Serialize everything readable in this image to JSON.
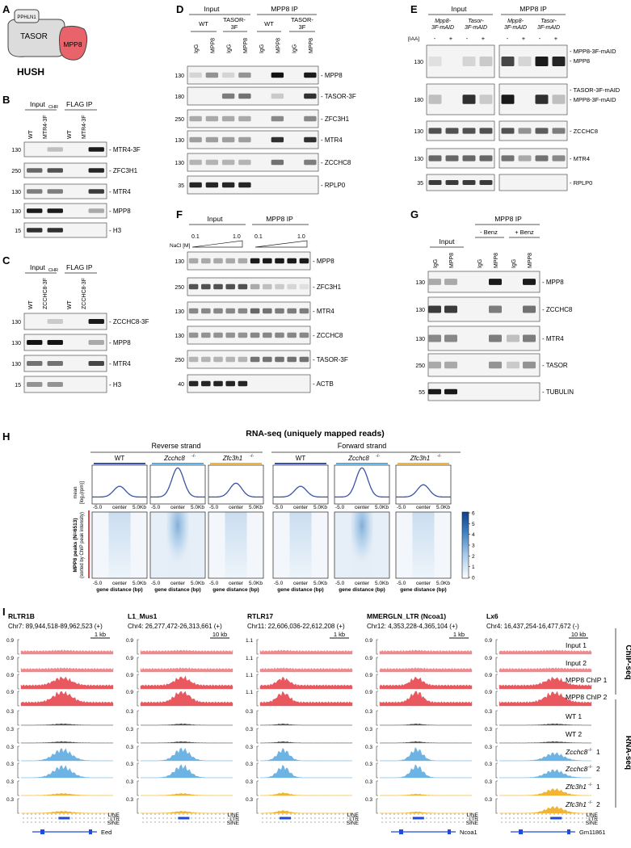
{
  "panelA": {
    "letter": "A",
    "title": "HUSH",
    "proteins": {
      "p1": "PPHLN1",
      "p2": "TASOR",
      "p3": "MPP8"
    },
    "colors": {
      "mpp8": "#e9636b",
      "tasor": "#d9d9d9",
      "pphln1": "#e6e6e6"
    }
  },
  "panelB": {
    "letter": "B",
    "groups": {
      "g1": "Input",
      "g1_sub": "CHR",
      "g2": "FLAG IP"
    },
    "lanes": {
      "l1": "WT",
      "l2": "MTR4-3F",
      "l3": "WT",
      "l4": "MTR4-3F"
    },
    "blots": [
      {
        "mw": "130",
        "label": "- MTR4-3F"
      },
      {
        "mw": "250",
        "label": "- ZFC3H1"
      },
      {
        "mw": "130",
        "label": "- MTR4"
      },
      {
        "mw": "130",
        "label": "- MPP8"
      },
      {
        "mw": "15",
        "label": "- H3"
      }
    ]
  },
  "panelC": {
    "letter": "C",
    "groups": {
      "g1": "Input",
      "g1_sub": "CHR",
      "g2": "FLAG IP"
    },
    "lanes": {
      "l1": "WT",
      "l2": "ZCCHC8-3F",
      "l3": "WT",
      "l4": "ZCCHC8-3F"
    },
    "blots": [
      {
        "mw": "130",
        "label": "- ZCCHC8-3F"
      },
      {
        "mw": "130",
        "label": "- MPP8"
      },
      {
        "mw": "130",
        "label": "- MTR4"
      },
      {
        "mw": "15",
        "label": "- H3"
      }
    ]
  },
  "panelD": {
    "letter": "D",
    "groups": {
      "g1": "Input",
      "g2": "MPP8 IP"
    },
    "subgroups": {
      "s1": "WT",
      "s2a": "TASOR-",
      "s2b": "3F",
      "s3": "WT",
      "s4a": "TASOR-",
      "s4b": "3F"
    },
    "lanes": [
      "IgG",
      "MPP8",
      "IgG",
      "MPP8",
      "IgG",
      "MPP8",
      "IgG",
      "MPP8"
    ],
    "blots": [
      {
        "mw": "130",
        "label": "- MPP8"
      },
      {
        "mw": "180",
        "label": "- TASOR-3F"
      },
      {
        "mw": "250",
        "label": "- ZFC3H1"
      },
      {
        "mw": "130",
        "label": "- MTR4"
      },
      {
        "mw": "130",
        "label": "- ZCCHC8"
      },
      {
        "mw": "35",
        "label": "- RPLP0"
      }
    ]
  },
  "panelE": {
    "letter": "E",
    "groups": {
      "g1": "Input",
      "g2": "MPP8 IP"
    },
    "subgroups": {
      "s1a": "Mpp8-",
      "s1b": "3F-mAID",
      "s2a": "Tasor-",
      "s2b": "3F-mAID",
      "s3a": "Mpp8-",
      "s3b": "3F-mAID",
      "s4a": "Tasor-",
      "s4b": "3F-mAID"
    },
    "iaa": {
      "label": "[IAA]",
      "minus": "-",
      "plus": "+"
    },
    "blots": [
      {
        "mw": "130",
        "label1": "- MPP8-3F-mAID",
        "label2": "- MPP8"
      },
      {
        "mw": "180",
        "label1": "- TASOR-3F-mAID",
        "label2": "- MPP8-3F-mAID"
      },
      {
        "mw": "130",
        "label1": "- ZCCHC8",
        "label2": ""
      },
      {
        "mw": "130",
        "label1": "- MTR4",
        "label2": ""
      },
      {
        "mw": "35",
        "label1": "- RPLP0",
        "label2": ""
      }
    ]
  },
  "panelF": {
    "letter": "F",
    "groups": {
      "g1": "Input",
      "g2": "MPP8 IP"
    },
    "nacl": {
      "label": "NaCl [M]",
      "low": "0.1",
      "high": "1.0"
    },
    "blots": [
      {
        "mw": "130",
        "label": "- MPP8"
      },
      {
        "mw": "250",
        "label": "- ZFC3H1"
      },
      {
        "mw": "130",
        "label": "- MTR4"
      },
      {
        "mw": "130",
        "label": "- ZCCHC8"
      },
      {
        "mw": "250",
        "label": "- TASOR-3F"
      },
      {
        "mw": "40",
        "label": "- ACTB"
      }
    ]
  },
  "panelG": {
    "letter": "G",
    "groups": {
      "g1": "Input",
      "g2": "MPP8 IP",
      "s1": "- Benz",
      "s2": "+ Benz"
    },
    "lanes": [
      "IgG",
      "MPP8",
      "IgG",
      "MPP8",
      "IgG",
      "MPP8"
    ],
    "blots": [
      {
        "mw": "130",
        "label": "- MPP8"
      },
      {
        "mw": "130",
        "label": "- ZCCHC8"
      },
      {
        "mw": "130",
        "label": "- MTR4"
      },
      {
        "mw": "250",
        "label": "- TASOR"
      },
      {
        "mw": "55",
        "label": "- TUBULIN"
      }
    ]
  },
  "panelH": {
    "letter": "H",
    "title": "RNA-seq (uniquely mapped reads)",
    "strands": {
      "rev": "Reverse strand",
      "fwd": "Forward strand"
    },
    "conds": {
      "wt": "WT",
      "zc_a": "Zcchc8",
      "zc_b": "-/-",
      "zf_a": "Zfc3h1",
      "zf_b": "-/-"
    },
    "ylab1": "mean",
    "ylab2": "[log₂(rpm)]",
    "ylab3": "MPP8 peaks (N=6513)",
    "ylab4": "(sorted by ChIP peak intensity)",
    "xticks": {
      "t1": "-5.0",
      "t2": "center",
      "t3": "5.0Kb"
    },
    "xlabel": "gene distance (bp)",
    "colorbar_ticks": [
      "6",
      "5",
      "4",
      "3",
      "2",
      "1",
      "0"
    ],
    "colors": {
      "wt": "#3a53a4",
      "zc": "#5aaae0",
      "zf": "#f1b53b",
      "heat": "#2a6fb8"
    }
  },
  "panelI": {
    "letter": "I",
    "loci": [
      {
        "name": "RLTR1B",
        "coord": "Chr7: 89,944,518-89,962,523 (+)",
        "scale": "1 kb",
        "chip_max": "0.9",
        "gene": "Eed"
      },
      {
        "name": "L1_Mus1",
        "coord": "Chr4: 26,277,472-26,313,661 (+)",
        "scale": "10 kb",
        "chip_max": "0.9",
        "gene": ""
      },
      {
        "name": "RTLR17",
        "coord": "Chr11: 22,606,036-22,612,208 (+)",
        "scale": "1 kb",
        "chip_max": "1.1",
        "gene": ""
      },
      {
        "name": "MMERGLN_LTR (Ncoa1)",
        "coord": "Chr12: 4,353,228-4,365,104 (+)",
        "scale": "1 kb",
        "chip_max": "0.9",
        "gene": "Ncoa1"
      },
      {
        "name": "Lx6",
        "coord": "Chr4: 16,437,254-16,477,672 (-)",
        "scale": "10 kb",
        "chip_max": "0.9",
        "gene": "Gm11861"
      }
    ],
    "rna_max": "0.3",
    "tracks": [
      {
        "label": "Input 1"
      },
      {
        "label": "Input 2"
      },
      {
        "label": "MPP8 ChIP 1"
      },
      {
        "label": "MPP8 ChIP 2"
      },
      {
        "label": "WT 1"
      },
      {
        "label": "WT 2"
      },
      {
        "label_a": "Zcchc8",
        "label_b": "-/-",
        "label_c": " 1"
      },
      {
        "label_a": "Zcchc8",
        "label_b": "-/-",
        "label_c": " 2"
      },
      {
        "label_a": "Zfc3h1",
        "label_b": "-/-",
        "label_c": " 1"
      },
      {
        "label_a": "Zfc3h1",
        "label_b": "-/-",
        "label_c": " 2"
      }
    ],
    "assays": {
      "chip": "ChIP-seq",
      "rna": "RNA-seq"
    },
    "repeats": {
      "line": "LINE",
      "ltr": "LTR",
      "sine": "SINE"
    },
    "colors": {
      "chip": "#e9585f",
      "input": "#ee8a8e",
      "wt": "#555555",
      "zc": "#6db3e3",
      "zf": "#f2b533",
      "gene": "#1f4bd8"
    }
  }
}
